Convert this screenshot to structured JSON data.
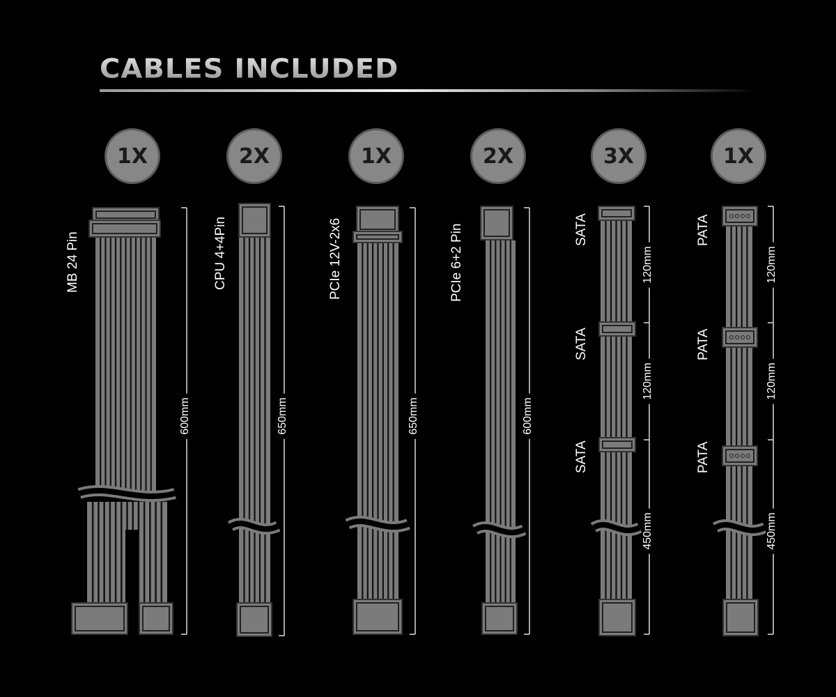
{
  "title": "CABLES INCLUDED",
  "colors": {
    "cable": "#7b7b7b",
    "badge": "#878787",
    "text": "#ffffff",
    "background": "#000000"
  },
  "cables": [
    {
      "quantity": "1X",
      "labels": [
        "MB 24 Pin"
      ],
      "lengths": [
        "600mm"
      ]
    },
    {
      "quantity": "2X",
      "labels": [
        "CPU 4+4Pin"
      ],
      "lengths": [
        "650mm"
      ]
    },
    {
      "quantity": "1X",
      "labels": [
        "PCIe 12V-2x6"
      ],
      "lengths": [
        "650mm"
      ]
    },
    {
      "quantity": "2X",
      "labels": [
        "PCIe 6+2 Pin"
      ],
      "lengths": [
        "600mm"
      ]
    },
    {
      "quantity": "3X",
      "labels": [
        "SATA",
        "SATA",
        "SATA"
      ],
      "lengths": [
        "120mm",
        "120mm",
        "450mm"
      ]
    },
    {
      "quantity": "1X",
      "labels": [
        "PATA",
        "PATA",
        "PATA"
      ],
      "lengths": [
        "120mm",
        "120mm",
        "450mm"
      ]
    }
  ]
}
